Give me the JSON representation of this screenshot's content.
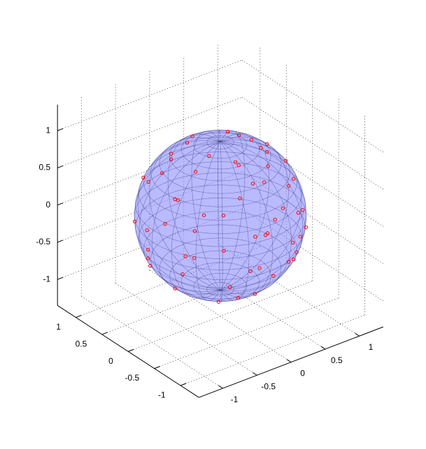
{
  "chart_data": {
    "type": "scatter3d",
    "color": "#ff0000",
    "grid": true,
    "xlim": [
      -1.35,
      1.35
    ],
    "ylim": [
      -1.35,
      1.35
    ],
    "zlim": [
      -1.35,
      1.35
    ],
    "xticks": [
      -1,
      -0.5,
      0,
      0.5,
      1
    ],
    "yticks": [
      -1,
      -0.5,
      0,
      0.5,
      1
    ],
    "zticks": [
      -1,
      -0.5,
      0,
      0.5,
      1
    ],
    "x": [
      0.31,
      -0.08,
      -0.5,
      0.3,
      0.47,
      -0.67,
      -0.26,
      0.75,
      0.15,
      -0.67,
      0.86,
      -0.59,
      0.08,
      -0.94,
      0.48,
      0.63,
      -0.34,
      -0.57,
      1,
      -0.87,
      0.34,
      0.86,
      -0.99,
      -0.17,
      0.08,
      -0.86,
      0.81,
      -0.46,
      -0.45,
      0.56,
      -0.69,
      0.61,
      0.71,
      -0.71,
      0,
      -0.05,
      -0.34,
      0.44,
      -0.07,
      0.41,
      -0.44,
      0.73,
      -0.78,
      0.24,
      0,
      0.76,
      -0.82,
      0.95,
      0.46,
      -0.85,
      0.2,
      -0.24,
      0.8,
      0.12,
      0.65,
      -0.09,
      0.48,
      0.08,
      0.71,
      0.71
    ],
    "y": [
      0.05,
      0.43,
      -0.18,
      -0.52,
      0.47,
      0.24,
      -0.71,
      -0.27,
      0.83,
      -0.56,
      0.23,
      0.7,
      -0.94,
      -0.17,
      0.84,
      -0.75,
      0.93,
      -0.81,
      0,
      0.5,
      -0.94,
      0.5,
      0.09,
      -0.97,
      0.97,
      -0.4,
      -0.47,
      0.8,
      -0.77,
      0.67,
      0.48,
      -0.51,
      0.26,
      -0.06,
      -0.66,
      0.6,
      -0.41,
      0,
      -0.38,
      -0.24,
      0.37,
      0.06,
      -0.21,
      -0.88,
      0.94,
      0.64,
      -0.57,
      -0.25,
      -0.8,
      0.23,
      0.75,
      -0.65,
      0.14,
      -0.68,
      -0.55,
      -0.98,
      -0.83,
      -0.91,
      0.33,
      -0.71
    ],
    "z": [
      0.95,
      0.9,
      0.85,
      0.8,
      0.75,
      0.7,
      0.65,
      0.6,
      0.55,
      0.5,
      0.45,
      0.4,
      0.35,
      0.3,
      0.25,
      0.2,
      0.15,
      0.1,
      0.05,
      0,
      -0.05,
      -0.1,
      -0.15,
      -0.2,
      -0.25,
      -0.3,
      -0.35,
      -0.4,
      -0.45,
      -0.5,
      -0.55,
      -0.6,
      -0.65,
      -0.7,
      -0.75,
      -0.8,
      -0.85,
      -0.9,
      0.92,
      0.88,
      0.82,
      0.68,
      0.58,
      0.42,
      0.33,
      0.12,
      -0.02,
      -0.18,
      -0.38,
      -0.48,
      -0.62,
      -0.72,
      -0.58,
      0.72,
      0.52,
      0.22,
      -0.28,
      -0.42,
      0.62,
      -0.08
    ]
  }
}
